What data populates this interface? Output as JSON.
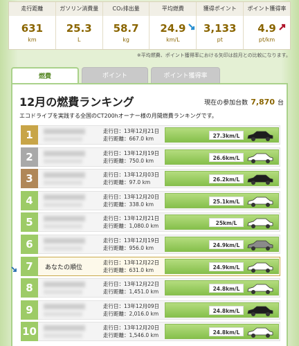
{
  "stats": [
    {
      "label": "走行距離",
      "value": "631",
      "unit": "km"
    },
    {
      "label": "ガソリン消費量",
      "value": "25.3",
      "unit": "L"
    },
    {
      "label": "CO₂排出量",
      "value": "58.7",
      "unit": "kg"
    },
    {
      "label": "平均燃費",
      "value": "24.9",
      "unit": "km/L",
      "trend": "down"
    },
    {
      "label": "獲得ポイント",
      "value": "3,133",
      "unit": "pt"
    },
    {
      "label": "ポイント獲得率",
      "value": "4.9",
      "unit": "pt/km",
      "trend": "up"
    }
  ],
  "note": "※平均燃費、ポイント獲得率における矢印は前月との比較になります。",
  "tabs": [
    "燃費",
    "ポイント",
    "ポイント獲得率"
  ],
  "ranking": {
    "title": "12月の燃費ランキング",
    "participants_label": "現在の参加台数",
    "participants": "7,870",
    "participants_unit": "台",
    "description": "エコドライブを実践する全国のCT200hオーナー様の月間燃費ランキングです。",
    "rows": [
      {
        "rank": "1",
        "date": "走行日：13年12月21日",
        "distance": "走行距離：667.0 km",
        "efficiency": "27.3km/L",
        "car": "black"
      },
      {
        "rank": "2",
        "date": "走行日：13年12月19日",
        "distance": "走行距離：750.0 km",
        "efficiency": "26.6km/L",
        "car": "white"
      },
      {
        "rank": "3",
        "date": "走行日：13年12月03日",
        "distance": "走行距離：97.0 km",
        "efficiency": "26.2km/L",
        "car": "black"
      },
      {
        "rank": "4",
        "date": "走行日：13年12月20日",
        "distance": "走行距離：338.0 km",
        "efficiency": "25.1km/L",
        "car": "white"
      },
      {
        "rank": "5",
        "date": "走行日：13年12月21日",
        "distance": "走行距離：1,080.0 km",
        "efficiency": "25km/L",
        "car": "white"
      },
      {
        "rank": "6",
        "date": "走行日：13年12月19日",
        "distance": "走行距離：956.0 km",
        "efficiency": "24.9km/L",
        "car": "gray"
      },
      {
        "rank": "7",
        "name": "あなたの順位",
        "date": "走行日：13年12月22日",
        "distance": "走行距離：631.0 km",
        "efficiency": "24.9km/L",
        "car": "white",
        "self": true
      },
      {
        "rank": "8",
        "date": "走行日：13年12月22日",
        "distance": "走行距離：1,451.0 km",
        "efficiency": "24.8km/L",
        "car": "white"
      },
      {
        "rank": "9",
        "date": "走行日：13年12月09日",
        "distance": "走行距離：2,016.0 km",
        "efficiency": "24.8km/L",
        "car": "black"
      },
      {
        "rank": "10",
        "date": "走行日：13年12月20日",
        "distance": "走行距離：1,546.0 km",
        "efficiency": "24.8km/L",
        "car": "white"
      }
    ]
  }
}
